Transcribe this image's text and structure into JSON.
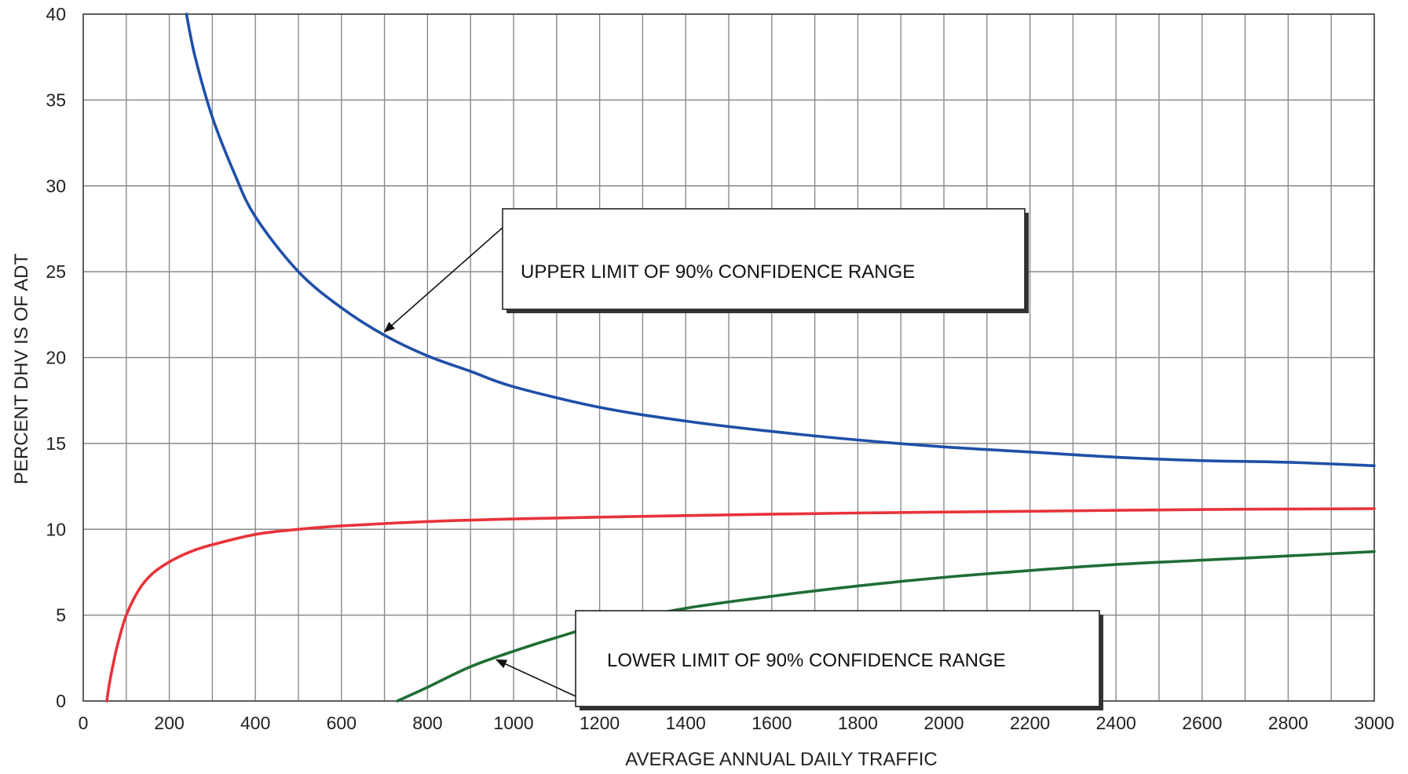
{
  "chart_data": {
    "type": "line",
    "title": "",
    "xlabel": "AVERAGE ANNUAL DAILY TRAFFIC",
    "ylabel": "PERCENT DHV IS OF ADT",
    "xlim": [
      0,
      3000
    ],
    "ylim": [
      0,
      40
    ],
    "x_ticks": [
      0,
      200,
      400,
      600,
      800,
      1000,
      1200,
      1400,
      1600,
      1800,
      2000,
      2200,
      2400,
      2600,
      2800,
      3000
    ],
    "y_ticks": [
      0,
      5,
      10,
      15,
      20,
      25,
      30,
      35,
      40
    ],
    "grid": true,
    "legend": "none",
    "series": [
      {
        "color": "#1f4fa8",
        "x": [
          240,
          260,
          300,
          350,
          400,
          500,
          600,
          700,
          800,
          900,
          1000,
          1200,
          1400,
          1600,
          1800,
          2000,
          2200,
          2400,
          2600,
          2800,
          3000
        ],
        "y": [
          40,
          37.5,
          34,
          30.8,
          28.2,
          25,
          22.9,
          21.3,
          20.1,
          19.2,
          18.3,
          17.1,
          16.3,
          15.7,
          15.2,
          14.8,
          14.5,
          14.2,
          14.0,
          13.9,
          13.7
        ]
      },
      {
        "color": "#e8333a",
        "x": [
          55,
          60,
          70,
          80,
          100,
          130,
          160,
          200,
          250,
          300,
          400,
          500,
          600,
          800,
          1000,
          1400,
          1800,
          2200,
          2600,
          3000
        ],
        "y": [
          0,
          0.9,
          2.2,
          3.3,
          5.0,
          6.5,
          7.4,
          8.1,
          8.7,
          9.1,
          9.7,
          10.0,
          10.2,
          10.45,
          10.6,
          10.8,
          10.95,
          11.05,
          11.15,
          11.2
        ]
      },
      {
        "color": "#1f6e35",
        "x": [
          730,
          800,
          900,
          1000,
          1100,
          1200,
          1400,
          1600,
          1800,
          2000,
          2200,
          2400,
          2600,
          2800,
          3000
        ],
        "y": [
          0,
          0.8,
          2.0,
          2.9,
          3.7,
          4.4,
          5.4,
          6.1,
          6.7,
          7.2,
          7.6,
          7.95,
          8.2,
          8.45,
          8.7
        ]
      }
    ],
    "annotations": [
      {
        "text": "UPPER LIMIT OF 90% CONFIDENCE RANGE",
        "points_to": {
          "x": 700,
          "y": 21.5
        }
      },
      {
        "text": "LOWER LIMIT OF 90% CONFIDENCE RANGE",
        "points_to": {
          "x": 960,
          "y": 2.4
        }
      }
    ]
  }
}
